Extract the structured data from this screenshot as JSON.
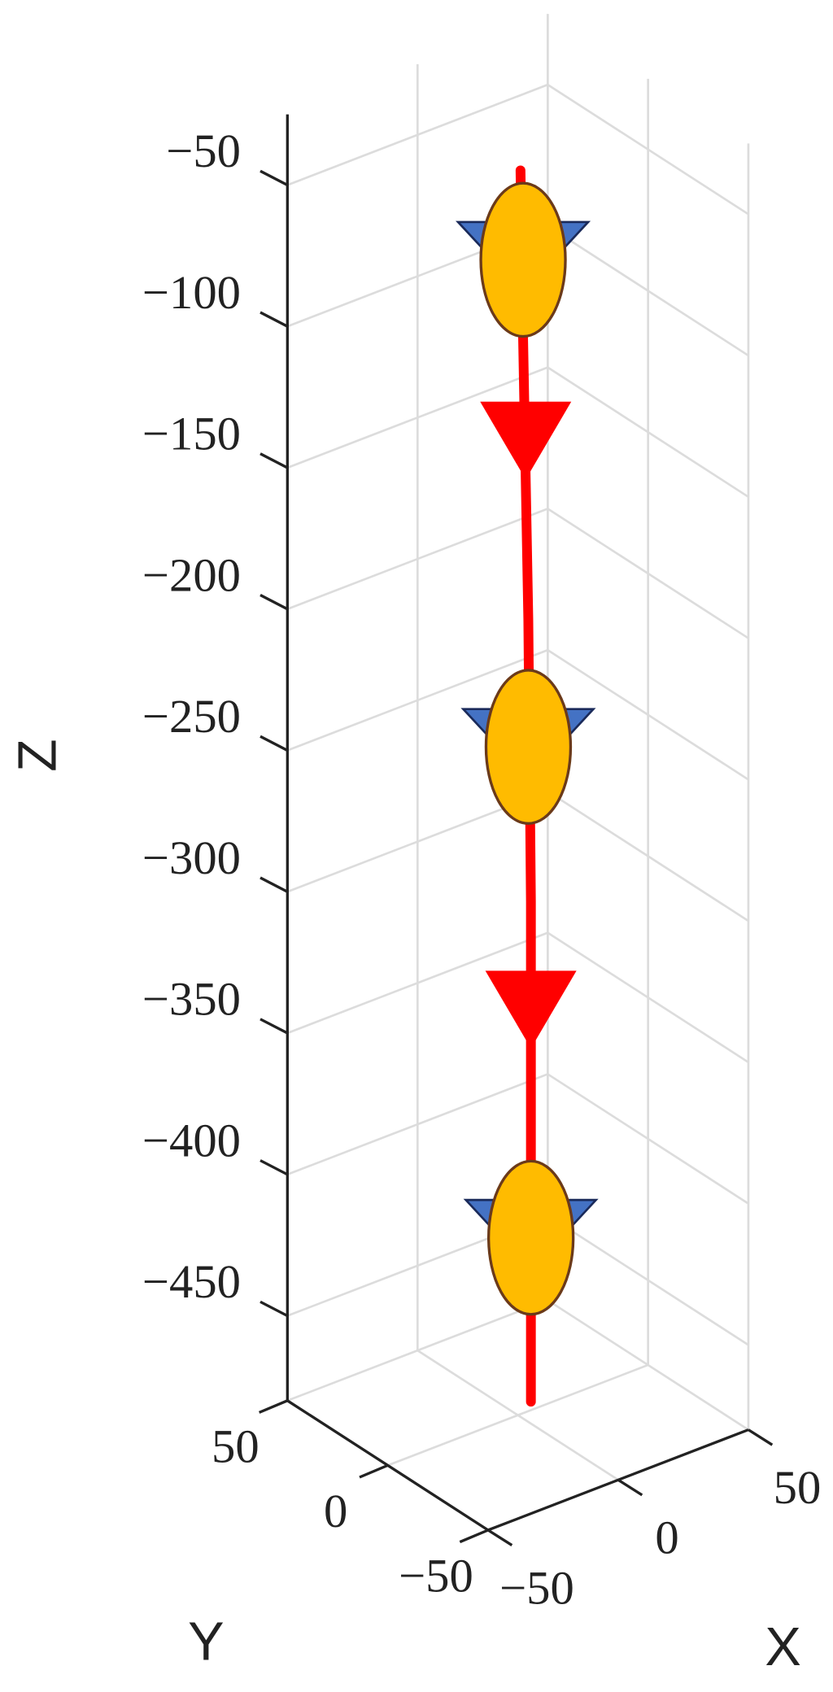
{
  "chart_data": {
    "type": "line3d",
    "xlabel": "X",
    "ylabel": "Y",
    "zlabel": "Z",
    "xlim": [
      -50,
      50
    ],
    "ylim": [
      -50,
      50
    ],
    "zlim": [
      -480,
      -25
    ],
    "xticks": [
      {
        "value": -50,
        "label": "−50"
      },
      0,
      50
    ],
    "yticks": [
      {
        "value": -50,
        "label": "−50"
      },
      0,
      50
    ],
    "zticks": [
      {
        "value": -50,
        "label": "−50"
      },
      {
        "value": -100,
        "label": "−100"
      },
      {
        "value": -150,
        "label": "−150"
      },
      {
        "value": -200,
        "label": "−200"
      },
      {
        "value": -250,
        "label": "−250"
      },
      {
        "value": -300,
        "label": "−300"
      },
      {
        "value": -350,
        "label": "−350"
      },
      {
        "value": -400,
        "label": "−400"
      },
      {
        "value": -450,
        "label": "−450"
      }
    ],
    "grid": true,
    "series": [
      {
        "color": "#ff0000",
        "x": [
          1,
          2,
          4,
          5,
          5,
          5
        ],
        "y": [
          0,
          0,
          0,
          0,
          0,
          0
        ],
        "z": [
          -40,
          -100,
          -200,
          -300,
          -400,
          -477
        ]
      }
    ],
    "markers": {
      "color": "#ffbb00",
      "x": [
        2,
        4,
        5
      ],
      "y": [
        0,
        0,
        0
      ],
      "z": [
        -72,
        -245,
        -419
      ]
    },
    "arrows": {
      "color": "#ff0000",
      "x": [
        3,
        5
      ],
      "y": [
        0,
        0
      ],
      "z": [
        -134,
        -336
      ]
    }
  }
}
